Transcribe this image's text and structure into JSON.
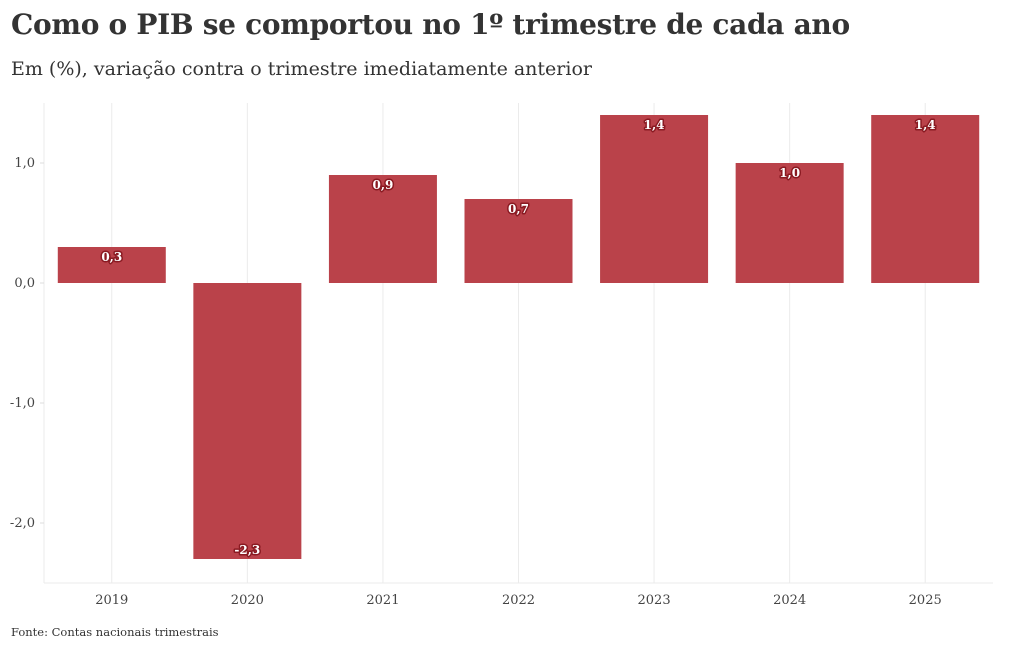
{
  "title": "Como o PIB se comportou no 1º trimestre de cada ano",
  "subtitle": "Em (%), variação contra o trimestre imediatamente anterior",
  "source": "Fonte: Contas nacionais trimestrais",
  "chart_data": {
    "type": "bar",
    "categories": [
      "2019",
      "2020",
      "2021",
      "2022",
      "2023",
      "2024",
      "2025"
    ],
    "values": [
      0.3,
      -2.3,
      0.9,
      0.7,
      1.4,
      1.0,
      1.4
    ],
    "data_labels": [
      "0,3",
      "-2,3",
      "0,9",
      "0,7",
      "1,4",
      "1,0",
      "1,4"
    ],
    "yticks": [
      1.0,
      0.0,
      -1.0,
      -2.0
    ],
    "ytick_labels": [
      "1,0",
      "0,0",
      "-1,0",
      "-2,0"
    ],
    "ylim": [
      -2.5,
      1.5
    ],
    "xlabel": "",
    "ylabel": "",
    "grid": "vertical",
    "bar_color": "#b83c44"
  }
}
